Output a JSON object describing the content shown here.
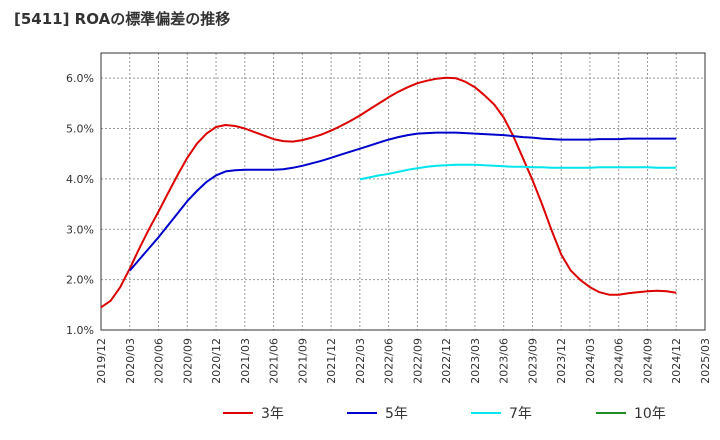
{
  "chart_data": {
    "type": "line",
    "title": "[5411]  ROAの標準偏差の推移",
    "xlabel": "",
    "ylabel": "",
    "x_ticks": [
      "2019/12",
      "2020/03",
      "2020/06",
      "2020/09",
      "2020/12",
      "2021/03",
      "2021/06",
      "2021/09",
      "2021/12",
      "2022/03",
      "2022/06",
      "2022/09",
      "2022/12",
      "2023/03",
      "2023/06",
      "2023/09",
      "2023/12",
      "2024/03",
      "2024/06",
      "2024/09",
      "2024/12",
      "2025/03"
    ],
    "y_ticks": [
      "1.0%",
      "2.0%",
      "3.0%",
      "4.0%",
      "5.0%",
      "6.0%"
    ],
    "ylim": [
      1.0,
      6.5
    ],
    "grid": true,
    "legend_position": "bottom",
    "series": [
      {
        "name": "3年",
        "color": "#dd0000",
        "points": [
          [
            "2019/12",
            1.45
          ],
          [
            "2020/01",
            1.58
          ],
          [
            "2020/02",
            1.85
          ],
          [
            "2020/03",
            2.22
          ],
          [
            "2020/04",
            2.62
          ],
          [
            "2020/05",
            3.0
          ],
          [
            "2020/06",
            3.35
          ],
          [
            "2020/07",
            3.72
          ],
          [
            "2020/08",
            4.08
          ],
          [
            "2020/09",
            4.42
          ],
          [
            "2020/10",
            4.7
          ],
          [
            "2020/11",
            4.9
          ],
          [
            "2020/12",
            5.03
          ],
          [
            "2021/01",
            5.07
          ],
          [
            "2021/02",
            5.05
          ],
          [
            "2021/03",
            5.0
          ],
          [
            "2021/04",
            4.93
          ],
          [
            "2021/05",
            4.86
          ],
          [
            "2021/06",
            4.79
          ],
          [
            "2021/07",
            4.75
          ],
          [
            "2021/08",
            4.74
          ],
          [
            "2021/09",
            4.77
          ],
          [
            "2021/10",
            4.82
          ],
          [
            "2021/11",
            4.88
          ],
          [
            "2021/12",
            4.96
          ],
          [
            "2022/01",
            5.05
          ],
          [
            "2022/02",
            5.15
          ],
          [
            "2022/03",
            5.26
          ],
          [
            "2022/04",
            5.38
          ],
          [
            "2022/05",
            5.5
          ],
          [
            "2022/06",
            5.62
          ],
          [
            "2022/07",
            5.73
          ],
          [
            "2022/08",
            5.82
          ],
          [
            "2022/09",
            5.9
          ],
          [
            "2022/10",
            5.95
          ],
          [
            "2022/11",
            5.99
          ],
          [
            "2022/12",
            6.01
          ],
          [
            "2023/01",
            6.0
          ],
          [
            "2023/02",
            5.93
          ],
          [
            "2023/03",
            5.82
          ],
          [
            "2023/04",
            5.66
          ],
          [
            "2023/05",
            5.48
          ],
          [
            "2023/06",
            5.22
          ],
          [
            "2023/07",
            4.85
          ],
          [
            "2023/08",
            4.42
          ],
          [
            "2023/09",
            3.98
          ],
          [
            "2023/10",
            3.5
          ],
          [
            "2023/11",
            2.98
          ],
          [
            "2023/12",
            2.5
          ],
          [
            "2024/01",
            2.18
          ],
          [
            "2024/02",
            1.99
          ],
          [
            "2024/03",
            1.85
          ],
          [
            "2024/04",
            1.75
          ],
          [
            "2024/05",
            1.7
          ],
          [
            "2024/06",
            1.7
          ],
          [
            "2024/07",
            1.73
          ],
          [
            "2024/08",
            1.75
          ],
          [
            "2024/09",
            1.77
          ],
          [
            "2024/10",
            1.78
          ],
          [
            "2024/11",
            1.77
          ],
          [
            "2024/12",
            1.74
          ]
        ]
      },
      {
        "name": "5年",
        "color": "#0000cc",
        "points": [
          [
            "2020/03",
            2.18
          ],
          [
            "2020/04",
            2.4
          ],
          [
            "2020/05",
            2.62
          ],
          [
            "2020/06",
            2.84
          ],
          [
            "2020/07",
            3.08
          ],
          [
            "2020/08",
            3.32
          ],
          [
            "2020/09",
            3.56
          ],
          [
            "2020/10",
            3.76
          ],
          [
            "2020/11",
            3.94
          ],
          [
            "2020/12",
            4.07
          ],
          [
            "2021/01",
            4.15
          ],
          [
            "2021/02",
            4.17
          ],
          [
            "2021/03",
            4.18
          ],
          [
            "2021/04",
            4.18
          ],
          [
            "2021/05",
            4.18
          ],
          [
            "2021/06",
            4.18
          ],
          [
            "2021/07",
            4.19
          ],
          [
            "2021/08",
            4.22
          ],
          [
            "2021/09",
            4.26
          ],
          [
            "2021/10",
            4.31
          ],
          [
            "2021/11",
            4.36
          ],
          [
            "2021/12",
            4.42
          ],
          [
            "2022/01",
            4.48
          ],
          [
            "2022/02",
            4.54
          ],
          [
            "2022/03",
            4.6
          ],
          [
            "2022/04",
            4.66
          ],
          [
            "2022/05",
            4.72
          ],
          [
            "2022/06",
            4.78
          ],
          [
            "2022/07",
            4.83
          ],
          [
            "2022/08",
            4.87
          ],
          [
            "2022/09",
            4.9
          ],
          [
            "2022/10",
            4.91
          ],
          [
            "2022/11",
            4.92
          ],
          [
            "2022/12",
            4.92
          ],
          [
            "2023/01",
            4.92
          ],
          [
            "2023/02",
            4.91
          ],
          [
            "2023/03",
            4.9
          ],
          [
            "2023/04",
            4.89
          ],
          [
            "2023/05",
            4.88
          ],
          [
            "2023/06",
            4.87
          ],
          [
            "2023/07",
            4.85
          ],
          [
            "2023/08",
            4.83
          ],
          [
            "2023/09",
            4.82
          ],
          [
            "2023/10",
            4.8
          ],
          [
            "2023/11",
            4.79
          ],
          [
            "2023/12",
            4.78
          ],
          [
            "2024/01",
            4.78
          ],
          [
            "2024/02",
            4.78
          ],
          [
            "2024/03",
            4.78
          ],
          [
            "2024/04",
            4.79
          ],
          [
            "2024/05",
            4.79
          ],
          [
            "2024/06",
            4.79
          ],
          [
            "2024/07",
            4.8
          ],
          [
            "2024/08",
            4.8
          ],
          [
            "2024/09",
            4.8
          ],
          [
            "2024/10",
            4.8
          ],
          [
            "2024/11",
            4.8
          ],
          [
            "2024/12",
            4.8
          ]
        ]
      },
      {
        "name": "7年",
        "color": "#00e5ee",
        "points": [
          [
            "2022/03",
            3.99
          ],
          [
            "2022/04",
            4.03
          ],
          [
            "2022/05",
            4.07
          ],
          [
            "2022/06",
            4.1
          ],
          [
            "2022/07",
            4.14
          ],
          [
            "2022/08",
            4.18
          ],
          [
            "2022/09",
            4.21
          ],
          [
            "2022/10",
            4.24
          ],
          [
            "2022/11",
            4.26
          ],
          [
            "2022/12",
            4.27
          ],
          [
            "2023/01",
            4.28
          ],
          [
            "2023/02",
            4.28
          ],
          [
            "2023/03",
            4.28
          ],
          [
            "2023/04",
            4.27
          ],
          [
            "2023/05",
            4.26
          ],
          [
            "2023/06",
            4.25
          ],
          [
            "2023/07",
            4.24
          ],
          [
            "2023/08",
            4.24
          ],
          [
            "2023/09",
            4.23
          ],
          [
            "2023/10",
            4.23
          ],
          [
            "2023/11",
            4.22
          ],
          [
            "2023/12",
            4.22
          ],
          [
            "2024/01",
            4.22
          ],
          [
            "2024/02",
            4.22
          ],
          [
            "2024/03",
            4.22
          ],
          [
            "2024/04",
            4.23
          ],
          [
            "2024/05",
            4.23
          ],
          [
            "2024/06",
            4.23
          ],
          [
            "2024/07",
            4.23
          ],
          [
            "2024/08",
            4.23
          ],
          [
            "2024/09",
            4.23
          ],
          [
            "2024/10",
            4.22
          ],
          [
            "2024/11",
            4.22
          ],
          [
            "2024/12",
            4.22
          ]
        ]
      },
      {
        "name": "10年",
        "color": "#228b22",
        "points": []
      }
    ]
  }
}
